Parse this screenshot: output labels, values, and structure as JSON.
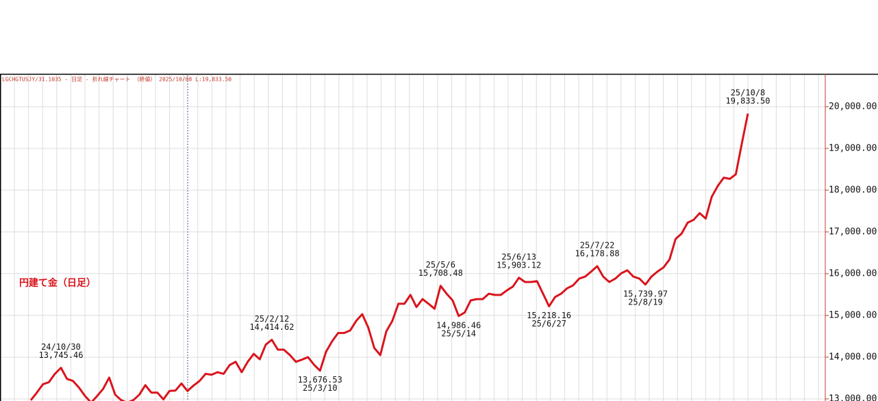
{
  "chart_data": {
    "type": "line",
    "header": "LGCHGTUSJY/31.1035 - 日足 - 折れ線チャート （終値） 2025/10/08 L:19,833.50",
    "title": "円建て金（日足）",
    "color": "#d9141c",
    "ylim": [
      12950,
      20785
    ],
    "yticks": [
      {
        "value": 13000,
        "label": "13,000.00"
      },
      {
        "value": 14000,
        "label": "14,000.00"
      },
      {
        "value": 15000,
        "label": "15,000.00"
      },
      {
        "value": 16000,
        "label": "16,000.00"
      },
      {
        "value": 17000,
        "label": "17,000.00"
      },
      {
        "value": 18000,
        "label": "18,000.00"
      },
      {
        "value": 19000,
        "label": "19,000.00"
      },
      {
        "value": 20000,
        "label": "20,000.00"
      }
    ],
    "grid": true,
    "values": [
      12970,
      13150,
      13350,
      13400,
      13600,
      13745.46,
      13480,
      13430,
      13270,
      13070,
      12910,
      13070,
      13240,
      13510,
      13100,
      12970,
      12910,
      12970,
      13100,
      13330,
      13150,
      13150,
      12990,
      13190,
      13200,
      13370,
      13190,
      13320,
      13430,
      13600,
      13580,
      13640,
      13600,
      13810,
      13890,
      13640,
      13890,
      14080,
      13950,
      14300,
      14414.62,
      14180,
      14180,
      14050,
      13890,
      13940,
      14000,
      13820,
      13676.53,
      14130,
      14380,
      14580,
      14580,
      14640,
      14870,
      15030,
      14710,
      14220,
      14050,
      14620,
      14870,
      15280,
      15280,
      15490,
      15200,
      15390,
      15280,
      15160,
      15708.48,
      15520,
      15360,
      14986.46,
      15070,
      15360,
      15390,
      15390,
      15520,
      15490,
      15490,
      15600,
      15690,
      15903.12,
      15800,
      15800,
      15820,
      15520,
      15218.16,
      15440,
      15520,
      15650,
      15720,
      15880,
      15930,
      16050,
      16178.88,
      15930,
      15800,
      15880,
      16010,
      16080,
      15930,
      15880,
      15739.97,
      15930,
      16050,
      16150,
      16340,
      16830,
      16960,
      17220,
      17290,
      17450,
      17320,
      17840,
      18100,
      18300,
      18270,
      18380,
      19120,
      19833.5
    ],
    "annotations": [
      {
        "date": "24/10/30",
        "value": 13745.46,
        "value_label": "13,745.46",
        "position": "above"
      },
      {
        "date": "25/2/12",
        "value": 14414.62,
        "value_label": "14,414.62",
        "position": "above"
      },
      {
        "date": "25/3/10",
        "value": 13676.53,
        "value_label": "13,676.53",
        "position": "below"
      },
      {
        "date": "25/5/6",
        "value": 15708.48,
        "value_label": "15,708.48",
        "position": "above"
      },
      {
        "date": "25/5/14",
        "value": 14986.46,
        "value_label": "14,986.46",
        "position": "below"
      },
      {
        "date": "25/6/13",
        "value": 15903.12,
        "value_label": "15,903.12",
        "position": "above"
      },
      {
        "date": "25/6/27",
        "value": 15218.16,
        "value_label": "15,218.16",
        "position": "below"
      },
      {
        "date": "25/7/22",
        "value": 16178.88,
        "value_label": "16,178.88",
        "position": "above"
      },
      {
        "date": "25/8/19",
        "value": 15739.97,
        "value_label": "15,739.97",
        "position": "below"
      },
      {
        "date": "25/10/8",
        "value": 19833.5,
        "value_label": "19,833.50",
        "position": "above"
      }
    ]
  }
}
